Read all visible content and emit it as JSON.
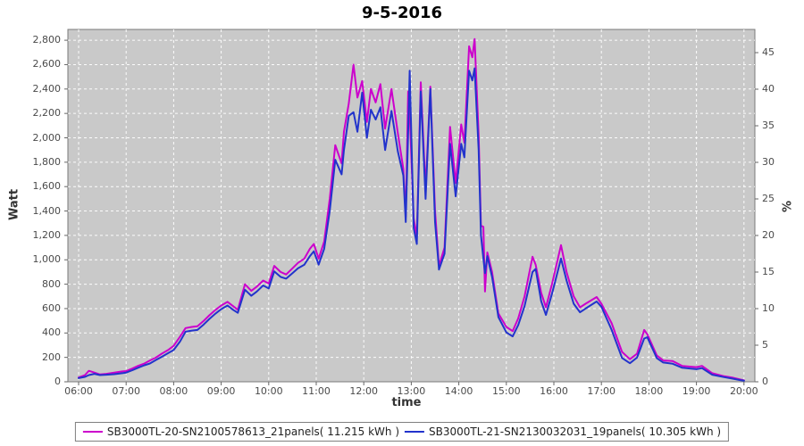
{
  "title": "9-5-2016",
  "axes": {
    "left_label": "Watt",
    "right_label": "%",
    "x_label": "time",
    "left_ticks": [
      "0",
      "200",
      "400",
      "600",
      "800",
      "1,000",
      "1,200",
      "1,400",
      "1,600",
      "1,800",
      "2,000",
      "2,200",
      "2,400",
      "2,600",
      "2,800"
    ],
    "right_ticks": [
      "0",
      "5",
      "10",
      "15",
      "20",
      "25",
      "30",
      "35",
      "40",
      "45"
    ],
    "x_ticks": [
      "06:00",
      "07:00",
      "08:00",
      "09:00",
      "10:00",
      "11:00",
      "12:00",
      "13:00",
      "14:00",
      "15:00",
      "16:00",
      "17:00",
      "18:00",
      "19:00",
      "20:00"
    ]
  },
  "legend": [
    {
      "label": "SB3000TL-20-SN2100578613_21panels( 11.215 kWh )",
      "color": "#CC00CC"
    },
    {
      "label": "SB3000TL-21-SN2130032031_19panels( 10.305 kWh )",
      "color": "#2233CC"
    }
  ],
  "chart_data": {
    "type": "line",
    "title": "9-5-2016",
    "xlabel": "time",
    "ylabel_left": "Watt",
    "ylabel_right": "%",
    "x_range": [
      "06:00",
      "20:00"
    ],
    "ylim_watt": [
      0,
      2880
    ],
    "y2lim_percent": [
      0,
      48
    ],
    "grid": true,
    "plot_bg": "#C9C9C9",
    "gridline_color": "#FFFFFF",
    "series": [
      {
        "name": "SB3000TL-20-SN2100578613_21panels",
        "energy_kwh_label": "11.215 kWh",
        "color": "#CC00CC"
      },
      {
        "name": "SB3000TL-21-SN2130032031_19panels",
        "energy_kwh_label": "10.305 kWh",
        "color": "#2233CC"
      }
    ],
    "points_format": [
      "time",
      "watt_series_1",
      "watt_series_2"
    ],
    "points": [
      [
        "06:00",
        35,
        30
      ],
      [
        "06:08",
        55,
        40
      ],
      [
        "06:13",
        90,
        55
      ],
      [
        "06:20",
        75,
        65
      ],
      [
        "06:27",
        60,
        55
      ],
      [
        "06:35",
        65,
        58
      ],
      [
        "06:45",
        75,
        62
      ],
      [
        "06:55",
        85,
        70
      ],
      [
        "07:00",
        88,
        75
      ],
      [
        "07:08",
        110,
        95
      ],
      [
        "07:15",
        130,
        115
      ],
      [
        "07:23",
        150,
        135
      ],
      [
        "07:30",
        175,
        150
      ],
      [
        "07:38",
        200,
        180
      ],
      [
        "07:45",
        230,
        205
      ],
      [
        "07:53",
        260,
        235
      ],
      [
        "08:00",
        295,
        260
      ],
      [
        "08:08",
        370,
        330
      ],
      [
        "08:15",
        440,
        410
      ],
      [
        "08:23",
        450,
        420
      ],
      [
        "08:30",
        455,
        425
      ],
      [
        "08:38",
        500,
        470
      ],
      [
        "08:45",
        545,
        515
      ],
      [
        "08:53",
        590,
        560
      ],
      [
        "09:00",
        625,
        595
      ],
      [
        "09:08",
        655,
        625
      ],
      [
        "09:15",
        620,
        590
      ],
      [
        "09:21",
        590,
        565
      ],
      [
        "09:30",
        800,
        755
      ],
      [
        "09:38",
        745,
        705
      ],
      [
        "09:45",
        780,
        740
      ],
      [
        "09:53",
        830,
        790
      ],
      [
        "10:00",
        805,
        765
      ],
      [
        "10:07",
        950,
        905
      ],
      [
        "10:15",
        900,
        860
      ],
      [
        "10:22",
        880,
        845
      ],
      [
        "10:30",
        930,
        890
      ],
      [
        "10:37",
        975,
        930
      ],
      [
        "10:45",
        1010,
        960
      ],
      [
        "10:52",
        1090,
        1030
      ],
      [
        "10:57",
        1130,
        1070
      ],
      [
        "11:03",
        1010,
        960
      ],
      [
        "11:10",
        1150,
        1090
      ],
      [
        "11:17",
        1500,
        1400
      ],
      [
        "11:24",
        1940,
        1820
      ],
      [
        "11:32",
        1790,
        1700
      ],
      [
        "11:35",
        2050,
        1900
      ],
      [
        "11:41",
        2280,
        2180
      ],
      [
        "11:47",
        2600,
        2210
      ],
      [
        "11:52",
        2330,
        2050
      ],
      [
        "11:58",
        2465,
        2370
      ],
      [
        "12:04",
        2130,
        2000
      ],
      [
        "12:09",
        2400,
        2230
      ],
      [
        "12:15",
        2290,
        2150
      ],
      [
        "12:21",
        2440,
        2250
      ],
      [
        "12:27",
        2075,
        1900
      ],
      [
        "12:35",
        2400,
        2220
      ],
      [
        "12:43",
        2040,
        1890
      ],
      [
        "12:50",
        1745,
        1690
      ],
      [
        "12:53",
        1350,
        1310
      ],
      [
        "12:56",
        2380,
        2050
      ],
      [
        "12:58",
        2200,
        2550
      ],
      [
        "13:03",
        1340,
        1260
      ],
      [
        "13:07",
        1190,
        1130
      ],
      [
        "13:12",
        2455,
        2380
      ],
      [
        "13:18",
        1580,
        1500
      ],
      [
        "13:24",
        2420,
        2400
      ],
      [
        "13:30",
        1400,
        1310
      ],
      [
        "13:35",
        950,
        920
      ],
      [
        "13:42",
        1100,
        1050
      ],
      [
        "13:49",
        2090,
        1950
      ],
      [
        "13:56",
        1630,
        1520
      ],
      [
        "14:03",
        2110,
        1950
      ],
      [
        "14:07",
        1960,
        1840
      ],
      [
        "14:13",
        2750,
        2550
      ],
      [
        "14:17",
        2660,
        2470
      ],
      [
        "14:20",
        2810,
        2570
      ],
      [
        "14:25",
        2020,
        1900
      ],
      [
        "14:28",
        1280,
        1200
      ],
      [
        "14:31",
        1270,
        1010
      ],
      [
        "14:33",
        740,
        890
      ],
      [
        "14:36",
        1060,
        1030
      ],
      [
        "14:42",
        900,
        860
      ],
      [
        "14:50",
        560,
        530
      ],
      [
        "15:00",
        450,
        405
      ],
      [
        "15:08",
        415,
        372
      ],
      [
        "15:15",
        520,
        465
      ],
      [
        "15:23",
        700,
        620
      ],
      [
        "15:33",
        1025,
        900
      ],
      [
        "15:37",
        960,
        925
      ],
      [
        "15:44",
        730,
        660
      ],
      [
        "15:50",
        610,
        548
      ],
      [
        "15:58",
        810,
        730
      ],
      [
        "16:09",
        1120,
        1010
      ],
      [
        "16:16",
        900,
        830
      ],
      [
        "16:25",
        700,
        640
      ],
      [
        "16:33",
        610,
        570
      ],
      [
        "16:40",
        640,
        600
      ],
      [
        "16:54",
        695,
        658
      ],
      [
        "17:00",
        640,
        615
      ],
      [
        "17:13",
        480,
        425
      ],
      [
        "17:26",
        245,
        195
      ],
      [
        "17:36",
        185,
        152
      ],
      [
        "17:45",
        230,
        198
      ],
      [
        "17:54",
        425,
        355
      ],
      [
        "17:58",
        390,
        365
      ],
      [
        "18:10",
        215,
        193
      ],
      [
        "18:18",
        175,
        158
      ],
      [
        "18:30",
        170,
        148
      ],
      [
        "18:42",
        130,
        115
      ],
      [
        "19:00",
        120,
        103
      ],
      [
        "19:07",
        130,
        112
      ],
      [
        "19:20",
        70,
        58
      ],
      [
        "19:35",
        45,
        38
      ],
      [
        "19:45",
        35,
        26
      ],
      [
        "19:55",
        20,
        14
      ],
      [
        "20:00",
        12,
        9
      ]
    ]
  }
}
